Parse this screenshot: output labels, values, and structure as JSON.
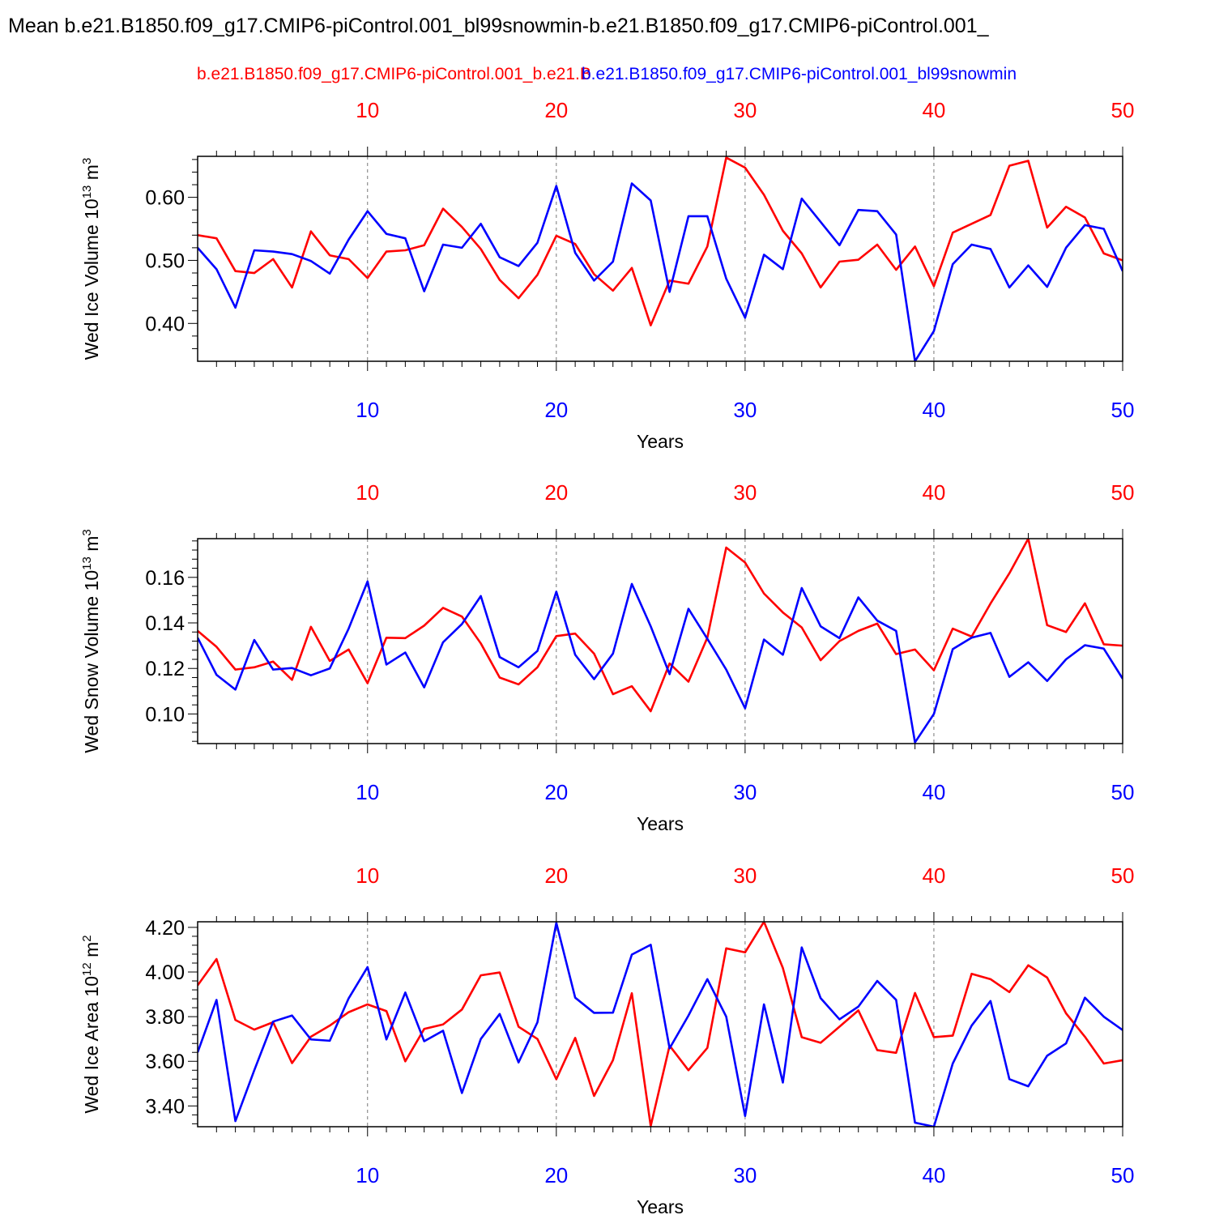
{
  "title": "Mean b.e21.B1850.f09_g17.CMIP6-piControl.001_bl99snowmin-b.e21.B1850.f09_g17.CMIP6-piControl.001_",
  "case_a": "b.e21.B1850.f09_g17.CMIP6-piControl.001_b.e21.B",
  "case_b": "b.e21.B1850.f09_g17.CMIP6-piControl.001_bl99snowmin",
  "colors": {
    "case_a": "#ff0000",
    "case_b": "#0000ff"
  },
  "chart_data": [
    {
      "type": "line",
      "ylabel": "Wed Ice Volume 10",
      "ylabel_exp": "13",
      "ylabel_unit": " m",
      "ylabel_unit_exp": "3",
      "xlabel": "Years",
      "xlim": [
        1,
        50
      ],
      "ylim": [
        0.34,
        0.665
      ],
      "yticks": [
        "0.40",
        "0.50",
        "0.60"
      ],
      "xticks": [
        "10",
        "20",
        "30",
        "40",
        "50"
      ],
      "grid": "dashed verticals at major x ticks",
      "series": [
        {
          "color": "red",
          "x_axis": "top",
          "values": [
            0.54,
            0.535,
            0.483,
            0.48,
            0.502,
            0.457,
            0.546,
            0.508,
            0.502,
            0.472,
            0.514,
            0.516,
            0.524,
            0.582,
            0.553,
            0.518,
            0.469,
            0.44,
            0.477,
            0.539,
            0.526,
            0.478,
            0.452,
            0.488,
            0.397,
            0.468,
            0.463,
            0.522,
            0.663,
            0.647,
            0.604,
            0.547,
            0.511,
            0.457,
            0.498,
            0.501,
            0.525,
            0.485,
            0.522,
            0.459,
            0.544,
            0.558,
            0.572,
            0.65,
            0.658,
            0.552,
            0.585,
            0.568,
            0.511,
            0.5
          ]
        },
        {
          "color": "blue",
          "x_axis": "bottom",
          "values": [
            0.52,
            0.486,
            0.425,
            0.516,
            0.514,
            0.51,
            0.499,
            0.479,
            0.533,
            0.578,
            0.542,
            0.535,
            0.451,
            0.525,
            0.52,
            0.558,
            0.505,
            0.491,
            0.528,
            0.618,
            0.512,
            0.468,
            0.498,
            0.622,
            0.595,
            0.45,
            0.57,
            0.57,
            0.471,
            0.409,
            0.509,
            0.486,
            0.598,
            0.561,
            0.524,
            0.58,
            0.578,
            0.541,
            0.34,
            0.388,
            0.494,
            0.525,
            0.518,
            0.457,
            0.492,
            0.458,
            0.52,
            0.556,
            0.55,
            0.483
          ]
        }
      ]
    },
    {
      "type": "line",
      "ylabel": "Wed Snow Volume 10",
      "ylabel_exp": "13",
      "ylabel_unit": " m",
      "ylabel_unit_exp": "3",
      "xlabel": "Years",
      "xlim": [
        1,
        50
      ],
      "ylim": [
        0.087,
        0.177
      ],
      "yticks": [
        "0.10",
        "0.12",
        "0.14",
        "0.16"
      ],
      "xticks": [
        "10",
        "20",
        "30",
        "40",
        "50"
      ],
      "grid": "dashed verticals at major x ticks",
      "series": [
        {
          "color": "red",
          "x_axis": "top",
          "values": [
            0.1365,
            0.1295,
            0.1195,
            0.1205,
            0.123,
            0.115,
            0.1383,
            0.1233,
            0.1283,
            0.1135,
            0.1335,
            0.1333,
            0.1388,
            0.1466,
            0.1428,
            0.131,
            0.116,
            0.113,
            0.1205,
            0.1342,
            0.1353,
            0.1265,
            0.1087,
            0.1122,
            0.1012,
            0.1222,
            0.1142,
            0.1335,
            0.1731,
            0.1665,
            0.1529,
            0.1446,
            0.138,
            0.1236,
            0.132,
            0.1365,
            0.1397,
            0.1263,
            0.1283,
            0.1192,
            0.1375,
            0.134,
            0.1485,
            0.1618,
            0.177,
            0.139,
            0.136,
            0.1486,
            0.1306,
            0.13
          ]
        },
        {
          "color": "blue",
          "x_axis": "bottom",
          "values": [
            0.1335,
            0.1172,
            0.1107,
            0.1325,
            0.1195,
            0.1202,
            0.117,
            0.12,
            0.1375,
            0.1582,
            0.1217,
            0.127,
            0.1117,
            0.1315,
            0.1395,
            0.1518,
            0.125,
            0.1205,
            0.1277,
            0.1537,
            0.126,
            0.1153,
            0.1265,
            0.1571,
            0.1385,
            0.1175,
            0.1462,
            0.133,
            0.1195,
            0.1025,
            0.1327,
            0.126,
            0.1553,
            0.1385,
            0.1333,
            0.1512,
            0.141,
            0.1365,
            0.0875,
            0.1,
            0.1285,
            0.1335,
            0.1356,
            0.1163,
            0.1227,
            0.1145,
            0.124,
            0.1302,
            0.1287,
            0.1155
          ]
        }
      ]
    },
    {
      "type": "line",
      "ylabel": "Wed Ice Area 10",
      "ylabel_exp": "12",
      "ylabel_unit": " m",
      "ylabel_unit_exp": "2",
      "xlabel": "Years",
      "xlim": [
        1,
        50
      ],
      "ylim": [
        3.307,
        4.225
      ],
      "yticks": [
        "3.40",
        "3.60",
        "3.80",
        "4.00",
        "4.20"
      ],
      "xticks": [
        "10",
        "20",
        "30",
        "40",
        "50"
      ],
      "grid": "dashed verticals at major x ticks",
      "series": [
        {
          "color": "red",
          "x_axis": "top",
          "values": [
            3.94,
            4.058,
            3.785,
            3.742,
            3.775,
            3.592,
            3.71,
            3.76,
            3.82,
            3.855,
            3.825,
            3.6,
            3.745,
            3.765,
            3.832,
            3.985,
            3.998,
            3.755,
            3.7,
            3.52,
            3.705,
            3.445,
            3.605,
            3.905,
            3.31,
            3.67,
            3.56,
            3.66,
            4.106,
            4.088,
            4.225,
            4.018,
            3.708,
            3.683,
            3.755,
            3.828,
            3.65,
            3.638,
            3.906,
            3.708,
            3.715,
            3.992,
            3.968,
            3.91,
            4.03,
            3.975,
            3.815,
            3.71,
            3.59,
            3.605
          ]
        },
        {
          "color": "blue",
          "x_axis": "bottom",
          "values": [
            3.64,
            3.875,
            3.332,
            3.56,
            3.778,
            3.805,
            3.698,
            3.692,
            3.882,
            4.022,
            3.698,
            3.908,
            3.69,
            3.737,
            3.458,
            3.7,
            3.812,
            3.595,
            3.775,
            4.22,
            3.885,
            3.817,
            3.818,
            4.078,
            4.122,
            3.658,
            3.805,
            3.968,
            3.8,
            3.355,
            3.855,
            3.505,
            4.11,
            3.883,
            3.788,
            3.845,
            3.96,
            3.875,
            3.325,
            3.307,
            3.59,
            3.76,
            3.87,
            3.52,
            3.488,
            3.625,
            3.68,
            3.885,
            3.8,
            3.74
          ]
        }
      ]
    }
  ]
}
